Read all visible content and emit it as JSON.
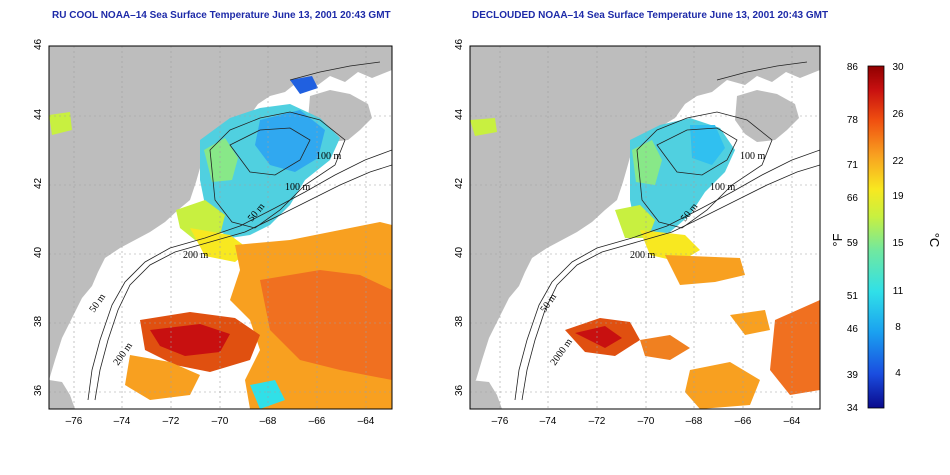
{
  "maps": [
    {
      "title": "RU COOL NOAA–14 Sea Surface Temperature June 13, 2001 20:43 GMT",
      "contour_labels": [
        "100 m",
        "100 m",
        "50 m",
        "200 m",
        "50 m",
        "200 m"
      ]
    },
    {
      "title": "DECLOUDED NOAA–14 Sea Surface Temperature June 13, 2001 20:43 GMT",
      "contour_labels": [
        "100 m",
        "100 m",
        "50 m",
        "200 m",
        "50 m",
        "2000 m"
      ]
    }
  ],
  "axes": {
    "lon_ticks": [
      "–76",
      "–74",
      "–72",
      "–70",
      "–68",
      "–66",
      "–64"
    ],
    "lat_ticks": [
      "46",
      "44",
      "42",
      "40",
      "38",
      "36"
    ],
    "lon_range": [
      -77.2,
      -63.0
    ],
    "lat_range": [
      35.0,
      46.0
    ]
  },
  "colorbar": {
    "f_label": "°F",
    "c_label": "°C",
    "f_ticks": [
      "86",
      "78",
      "71",
      "66",
      "59",
      "51",
      "46",
      "39",
      "34"
    ],
    "c_ticks": [
      "30",
      "26",
      "22",
      "19",
      "15",
      "11",
      "8",
      "4"
    ],
    "colors": [
      "#0a0a8c",
      "#1a4de0",
      "#1aa0f0",
      "#30e0e8",
      "#70e8a0",
      "#c8f040",
      "#f8e820",
      "#f8a020",
      "#f05010",
      "#c81010",
      "#900000"
    ]
  },
  "colors": {
    "land": "#bdbdbd",
    "water_background": "#ffffff",
    "title": "#1d2aa8",
    "grid": "#a0a0a0"
  }
}
